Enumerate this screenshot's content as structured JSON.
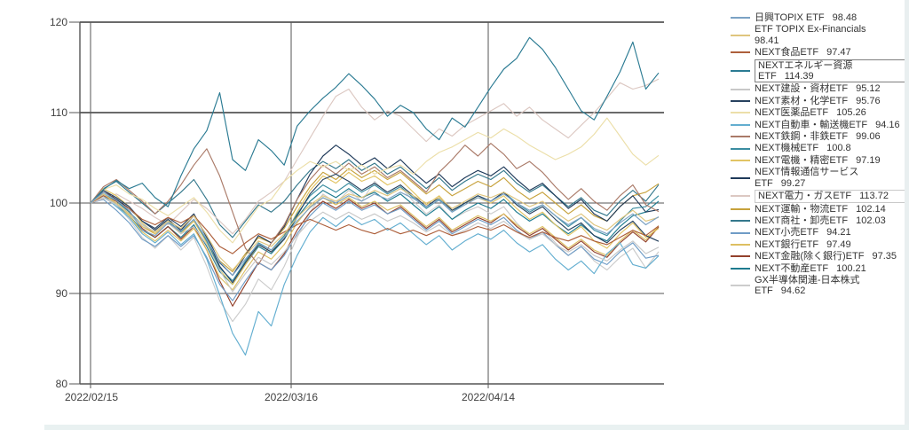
{
  "chart_data": {
    "type": "line",
    "title": "",
    "xlabel": "",
    "ylabel": "",
    "ylim": [
      80,
      120
    ],
    "grid": true,
    "legend_position": "right",
    "y_ticks": [
      120,
      110,
      100,
      90,
      80
    ],
    "x_ticks": [
      "2022/02/15",
      "2022/03/16",
      "2022/04/14"
    ],
    "colors": {
      "grid": "#555555",
      "axis_text": "#404040",
      "background": "#ffffff",
      "scroll_edge": "#e9eff0",
      "highlight_box_dark": "#7f7f7f",
      "highlight_box_light": "#c9c9c9"
    },
    "series": [
      {
        "name": "日興TOPIX ETF",
        "value": "98.48",
        "color": "#7ba2c4",
        "boxed": null,
        "two_line": false,
        "values": [
          100,
          101.2,
          100.3,
          99.2,
          97,
          96.4,
          97.8,
          96.9,
          98.2,
          96,
          93.5,
          92,
          93.8,
          95.5,
          94.8,
          96.2,
          98,
          99.5,
          100.6,
          100,
          100.8,
          100.2,
          101,
          100.4,
          101.2,
          100.5,
          99.6,
          100.3,
          99,
          99.8,
          100.6,
          100.2,
          101,
          100,
          99.2,
          99.8,
          98.6,
          97.6,
          98.4,
          97.2,
          96.6,
          97.8,
          98.8,
          97.6,
          98.48
        ]
      },
      {
        "name": "ETF TOPIX Ex-Financials",
        "value": "98.41",
        "color": "#dfc57e",
        "boxed": null,
        "two_line": true,
        "values": [
          100,
          101,
          100,
          98.8,
          97.4,
          96.8,
          98,
          97.2,
          98.6,
          96.4,
          94,
          92.6,
          94.2,
          95.8,
          95.2,
          96.6,
          98.4,
          99.8,
          100.8,
          100.2,
          101,
          100.6,
          101.4,
          100.8,
          101.6,
          100.8,
          100,
          100.6,
          99.4,
          100.2,
          101,
          100.6,
          101.2,
          100.4,
          99.6,
          100.2,
          99,
          98,
          98.8,
          97.6,
          97,
          98.2,
          99.2,
          98,
          98.41
        ]
      },
      {
        "name": "NEXT食品ETF",
        "value": "97.47",
        "color": "#ad5f3b",
        "boxed": null,
        "two_line": false,
        "values": [
          100,
          100.8,
          100.2,
          99.4,
          98.2,
          97.6,
          98.4,
          97.8,
          98.6,
          97,
          95.2,
          94.4,
          95.6,
          96.6,
          96,
          96.8,
          97.6,
          98.2,
          97.6,
          97,
          97.6,
          97,
          96.6,
          97.2,
          96.6,
          97,
          96.4,
          97,
          96.4,
          96.8,
          97.4,
          97,
          97.6,
          96.8,
          96.2,
          96.8,
          96.2,
          95.8,
          96.4,
          95.8,
          95.4,
          96.2,
          97,
          96.4,
          97.47
        ]
      },
      {
        "name": "NEXTエネルギー資源ETF",
        "value": "114.39",
        "color": "#2b7b93",
        "boxed": "dark",
        "two_line": false,
        "values": [
          100,
          101.5,
          102.5,
          101.6,
          102.2,
          100.6,
          99.6,
          103,
          106,
          108,
          112.2,
          104.8,
          103.6,
          107,
          105.8,
          104.2,
          108.5,
          110.2,
          111.6,
          112.8,
          114.3,
          113,
          111.5,
          109.6,
          110.8,
          110,
          108.2,
          107,
          109.4,
          108.4,
          110.6,
          112.8,
          114.8,
          116,
          118.3,
          117,
          115,
          112.6,
          110.2,
          109.2,
          111.8,
          114.5,
          117.8,
          112.6,
          114.39
        ]
      },
      {
        "name": "NEXT建設・資材ETF",
        "value": "95.12",
        "color": "#c8c8c8",
        "boxed": null,
        "two_line": false,
        "values": [
          100,
          100.6,
          99.8,
          98.8,
          97.6,
          96.8,
          97.8,
          96.6,
          97.4,
          95.4,
          92.6,
          90.2,
          92.2,
          94,
          93.2,
          94.6,
          96.4,
          98,
          99,
          98.2,
          99,
          98.2,
          98.8,
          98,
          98.6,
          97.8,
          96.8,
          97.6,
          96.4,
          97,
          97.8,
          97.2,
          98,
          96.8,
          96,
          96.6,
          95.4,
          94.6,
          95.4,
          94.2,
          93.6,
          94.8,
          95.8,
          94.4,
          95.12
        ]
      },
      {
        "name": "NEXT素材・化学ETF",
        "value": "95.76",
        "color": "#27425f",
        "boxed": null,
        "two_line": false,
        "values": [
          100,
          101.4,
          100.6,
          99.6,
          98,
          97.2,
          98.4,
          97.4,
          98.8,
          96.2,
          93,
          91.2,
          93.4,
          95.4,
          94.6,
          96,
          98.6,
          101,
          102.6,
          103.2,
          102.4,
          101.4,
          102.2,
          101.2,
          102,
          100.8,
          99.6,
          100.6,
          99.2,
          100,
          100.8,
          100.2,
          101.2,
          99.8,
          98.8,
          99.6,
          98.2,
          97,
          97.8,
          96.4,
          95.6,
          97,
          98,
          96.4,
          95.76
        ]
      },
      {
        "name": "NEXT医薬品ETF",
        "value": "105.26",
        "color": "#ecdfa9",
        "boxed": null,
        "two_line": false,
        "values": [
          100,
          101.5,
          102,
          101,
          100.4,
          99.4,
          98.6,
          99.6,
          100.6,
          99,
          97,
          95.6,
          97.6,
          99.6,
          100.4,
          102.4,
          103.6,
          104.6,
          104,
          104.6,
          103.6,
          104.2,
          103.2,
          103.8,
          104.2,
          103.2,
          104.6,
          105.6,
          106.2,
          107,
          107.8,
          107.2,
          108.2,
          107.4,
          106.4,
          105.6,
          104.8,
          105.4,
          106.2,
          107.6,
          109.4,
          107.4,
          105.4,
          104.2,
          105.26
        ]
      },
      {
        "name": "NEXT自動車・輸送機ETF",
        "value": "94.16",
        "color": "#63aed0",
        "boxed": null,
        "two_line": false,
        "values": [
          100,
          100.8,
          99.6,
          98.4,
          96.6,
          95.6,
          96.8,
          95.4,
          96.6,
          93.8,
          89.8,
          85.6,
          83.2,
          88,
          86.4,
          91,
          94.2,
          96.8,
          98.4,
          97.4,
          98.6,
          97.6,
          98.2,
          97,
          97.8,
          96.6,
          95.4,
          96.4,
          94.8,
          95.8,
          96.6,
          96,
          97,
          95.6,
          94.6,
          95.4,
          93.8,
          92.6,
          93.6,
          92.2,
          94.4,
          95.6,
          93.2,
          92.8,
          94.16
        ]
      },
      {
        "name": "NEXT鉄鋼・非鉄ETF",
        "value": "99.06",
        "color": "#aa7a68",
        "boxed": null,
        "two_line": false,
        "values": [
          100,
          101.8,
          102.6,
          101.4,
          100.2,
          98.8,
          100.2,
          102,
          104.2,
          106,
          103,
          99,
          95,
          93.2,
          95.6,
          97.6,
          100.4,
          102.6,
          104.2,
          103.2,
          104.4,
          103.2,
          104,
          102.8,
          103.6,
          102.4,
          101.2,
          103.4,
          104.8,
          106.4,
          105.2,
          106.6,
          105.4,
          103.8,
          104.6,
          103.4,
          101.8,
          100.4,
          101.6,
          100.2,
          99.2,
          100.8,
          102,
          99.8,
          99.06
        ]
      },
      {
        "name": "NEXT機械ETF",
        "value": "100.8",
        "color": "#3a8da1",
        "boxed": null,
        "two_line": false,
        "values": [
          100,
          101,
          100.2,
          99,
          97.6,
          96.8,
          98,
          96.8,
          98.2,
          95.8,
          92.8,
          91.4,
          93.6,
          95.6,
          94.8,
          96.4,
          98.8,
          100.8,
          102,
          101.2,
          102.2,
          101.2,
          102,
          101,
          101.8,
          100.6,
          99.4,
          100.4,
          99,
          100,
          100.8,
          100.2,
          101.2,
          100,
          99,
          99.8,
          98.6,
          97.4,
          98.4,
          97,
          96.4,
          98,
          99.4,
          99.6,
          100.8
        ]
      },
      {
        "name": "NEXT電機・精密ETF",
        "value": "97.19",
        "color": "#e2c464",
        "boxed": null,
        "two_line": false,
        "values": [
          100,
          101.6,
          100.8,
          99.6,
          97.8,
          96.6,
          97.8,
          96.6,
          98,
          95.6,
          92.6,
          91,
          93.2,
          95.4,
          94.6,
          96.2,
          99,
          101.4,
          103,
          102.2,
          103.4,
          102.4,
          103,
          102,
          102.6,
          101.2,
          99.8,
          100.8,
          99.2,
          100,
          100.6,
          100,
          100.8,
          99.4,
          98.2,
          99,
          97.6,
          96.4,
          97.4,
          95.8,
          95,
          96.6,
          97.8,
          96.2,
          97.19
        ]
      },
      {
        "name": "NEXT情報通信サービスETF",
        "value": "99.27",
        "color": "#1f3a5a",
        "boxed": null,
        "two_line": false,
        "values": [
          100,
          101.2,
          100.4,
          99.4,
          98,
          97,
          98.2,
          97,
          98.6,
          96.4,
          93.4,
          92,
          94.2,
          96.4,
          95.6,
          97.4,
          100.4,
          103.2,
          105.2,
          106.4,
          105.4,
          104.2,
          105,
          103.8,
          104.8,
          103.4,
          102.2,
          103.2,
          101.8,
          102.8,
          103.6,
          103,
          104,
          102.6,
          101.4,
          102.2,
          100.8,
          99.4,
          100.4,
          98.8,
          98,
          99.6,
          100.8,
          99,
          99.27
        ]
      },
      {
        "name": "NEXT電力・ガスETF",
        "value": "113.72",
        "color": "#dcc8c2",
        "boxed": "light",
        "two_line": false,
        "values": [
          100,
          100.5,
          101,
          100.2,
          99.4,
          98.4,
          97.6,
          99,
          100.4,
          99.4,
          98,
          96.6,
          98.2,
          100.2,
          101.2,
          102.4,
          104.8,
          107.2,
          109.6,
          111.8,
          112.6,
          110.6,
          109.2,
          110.2,
          109.6,
          108.2,
          106.8,
          108.2,
          107.4,
          108.6,
          109.4,
          110.2,
          111,
          109.6,
          110.6,
          109.2,
          108.2,
          107.2,
          108.6,
          110,
          111.6,
          113.3,
          112.6,
          113,
          113.72
        ]
      },
      {
        "name": "NEXT運輸・物流ETF",
        "value": "102.14",
        "color": "#c7a23c",
        "boxed": null,
        "two_line": false,
        "values": [
          100,
          100.8,
          100,
          98.8,
          97.4,
          96.6,
          97.8,
          96.8,
          98,
          96,
          93.6,
          92.4,
          94.4,
          96.2,
          95.6,
          97.2,
          99.6,
          101.8,
          103.4,
          102.6,
          103.8,
          102.8,
          103.6,
          102.6,
          103.4,
          102.2,
          101,
          102,
          100.8,
          101.6,
          102.4,
          101.8,
          102.8,
          101.4,
          100.4,
          101.2,
          100,
          98.8,
          99.8,
          98.6,
          98,
          99.6,
          100.8,
          101.2,
          102.14
        ]
      },
      {
        "name": "NEXT商社・卸売ETF",
        "value": "102.03",
        "color": "#34788c",
        "boxed": null,
        "two_line": false,
        "values": [
          100,
          101.6,
          102.4,
          101.2,
          100,
          98.8,
          100,
          101.2,
          102.6,
          100.4,
          97.6,
          96.2,
          98,
          99.8,
          99,
          100.2,
          102,
          103.6,
          104.6,
          103.8,
          104.8,
          103.6,
          104.4,
          103.2,
          104,
          102.8,
          101.6,
          102.8,
          101.4,
          102.4,
          103.2,
          102.6,
          103.6,
          102.2,
          101.2,
          102,
          100.8,
          99.6,
          100.6,
          99.2,
          98.6,
          100.2,
          101.4,
          100.2,
          102.03
        ]
      },
      {
        "name": "NEXT小売ETF",
        "value": "94.21",
        "color": "#6f9cc6",
        "boxed": null,
        "two_line": false,
        "values": [
          100,
          100.4,
          99.2,
          97.8,
          96,
          95.2,
          96.4,
          95.2,
          96.4,
          94,
          91,
          89.2,
          91.4,
          93.4,
          92.6,
          94.2,
          96.6,
          98.6,
          100,
          99.2,
          100.2,
          99.2,
          99.8,
          98.8,
          99.4,
          98.2,
          97,
          98,
          96.6,
          97.4,
          98.2,
          97.6,
          98.4,
          97,
          96,
          96.8,
          95.4,
          94.2,
          95.2,
          93.8,
          93.2,
          94.6,
          95.6,
          93.9,
          94.21
        ]
      },
      {
        "name": "NEXT銀行ETF",
        "value": "97.49",
        "color": "#ddbf62",
        "boxed": null,
        "two_line": false,
        "values": [
          100,
          101,
          100,
          98.6,
          96.8,
          95.8,
          97,
          95.8,
          97.2,
          94.8,
          91.8,
          90.4,
          92.6,
          94.6,
          93.8,
          95.4,
          97.8,
          99.6,
          100.6,
          99.8,
          100.6,
          99.6,
          100.2,
          99.2,
          99.8,
          98.6,
          97.4,
          98.4,
          97,
          97.8,
          98.6,
          98,
          98.8,
          97.6,
          96.6,
          97.4,
          96.2,
          95,
          96,
          94.8,
          94.2,
          95.8,
          97,
          95.9,
          97.49
        ]
      },
      {
        "name": "NEXT金融(除く銀行)ETF",
        "value": "97.35",
        "color": "#93412c",
        "boxed": null,
        "two_line": false,
        "values": [
          100,
          101.4,
          100.4,
          99,
          97.2,
          96.2,
          97.4,
          96,
          97.4,
          94.8,
          91.4,
          88.6,
          91,
          93.4,
          92.6,
          94.4,
          97,
          99,
          100.2,
          99.4,
          100.4,
          99.4,
          100,
          98.8,
          99.6,
          98.4,
          97.2,
          98.2,
          96.8,
          97.6,
          98.4,
          97.8,
          98.8,
          97.4,
          96.4,
          97.2,
          96,
          94.8,
          95.8,
          94.6,
          94,
          95.6,
          96.8,
          95.7,
          97.35
        ]
      },
      {
        "name": "NEXT不動産ETF",
        "value": "100.21",
        "color": "#1d7b8f",
        "boxed": null,
        "two_line": false,
        "values": [
          100,
          100.6,
          99.8,
          98.6,
          97,
          96.2,
          97.4,
          96.2,
          97.6,
          95.2,
          92.4,
          91,
          93.2,
          95.2,
          94.4,
          96,
          98.4,
          100.2,
          101.4,
          100.6,
          101.6,
          100.6,
          101.2,
          100.2,
          101,
          99.8,
          98.6,
          99.6,
          98.2,
          99.2,
          100,
          99.4,
          100.4,
          99,
          98,
          98.8,
          97.6,
          96.6,
          97.6,
          96.4,
          95.8,
          97.4,
          98.6,
          99,
          100.21
        ]
      },
      {
        "name": "GX半導体関連-日本株式ETF",
        "value": "94.62",
        "color": "#cccccc",
        "boxed": null,
        "two_line": false,
        "values": [
          100,
          101,
          99.8,
          98.2,
          96.2,
          95,
          96.4,
          94.8,
          96.2,
          93,
          89.2,
          86.9,
          88.8,
          91.6,
          90.4,
          93,
          96.2,
          99,
          101,
          100,
          101.4,
          100.2,
          102.4,
          101,
          101.8,
          100.2,
          98.8,
          99.8,
          98.2,
          99,
          99.6,
          98.8,
          99.6,
          97.8,
          96.4,
          97.2,
          95.6,
          94.2,
          95.2,
          93.6,
          92.6,
          94,
          95,
          92.8,
          94.62
        ]
      }
    ]
  }
}
